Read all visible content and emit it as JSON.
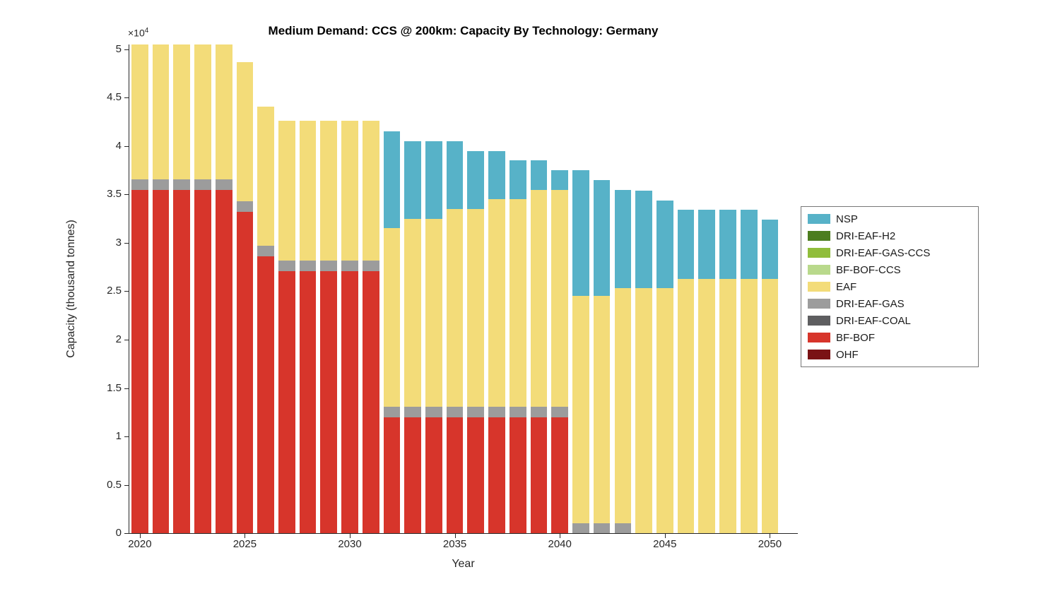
{
  "title": "Medium Demand: CCS @ 200km: Capacity By Technology: Germany",
  "axes": {
    "xlabel": "Year",
    "ylabel": "Capacity (thousand tonnes)",
    "y_mult_base": "×10",
    "y_mult_exp": "4",
    "x_ticks": [
      2020,
      2025,
      2030,
      2035,
      2040,
      2045,
      2050
    ],
    "y_ticks": [
      {
        "value": 0,
        "label": "0"
      },
      {
        "value": 5000,
        "label": "0.5"
      },
      {
        "value": 10000,
        "label": "1"
      },
      {
        "value": 15000,
        "label": "1.5"
      },
      {
        "value": 20000,
        "label": "2"
      },
      {
        "value": 25000,
        "label": "2.5"
      },
      {
        "value": 30000,
        "label": "3"
      },
      {
        "value": 35000,
        "label": "3.5"
      },
      {
        "value": 40000,
        "label": "4"
      },
      {
        "value": 45000,
        "label": "4.5"
      },
      {
        "value": 50000,
        "label": "5"
      }
    ]
  },
  "chart_data": {
    "type": "bar",
    "stacked": true,
    "title": "Medium Demand: CCS @ 200km: Capacity By Technology: Germany",
    "xlabel": "Year",
    "ylabel": "Capacity (thousand tonnes)",
    "units": "thousand tonnes",
    "xlim": [
      2019.5,
      2051.3
    ],
    "ylim": [
      0,
      50500
    ],
    "bar_width_years": 0.8,
    "legend_position": "right-outside",
    "grid": false,
    "x": [
      2020,
      2021,
      2022,
      2023,
      2024,
      2025,
      2026,
      2027,
      2028,
      2029,
      2030,
      2031,
      2032,
      2033,
      2034,
      2035,
      2036,
      2037,
      2038,
      2039,
      2040,
      2041,
      2042,
      2043,
      2044,
      2045,
      2046,
      2047,
      2048,
      2049,
      2050
    ],
    "series": [
      {
        "name": "OHF",
        "color": "#7a1215",
        "values": [
          0,
          0,
          0,
          0,
          0,
          0,
          0,
          0,
          0,
          0,
          0,
          0,
          0,
          0,
          0,
          0,
          0,
          0,
          0,
          0,
          0,
          0,
          0,
          0,
          0,
          0,
          0,
          0,
          0,
          0,
          0
        ]
      },
      {
        "name": "BF-BOF",
        "color": "#d7352b",
        "values": [
          35500,
          35500,
          35500,
          35500,
          35500,
          33200,
          28600,
          27100,
          27100,
          27100,
          27100,
          27100,
          12000,
          12000,
          12000,
          12000,
          12000,
          12000,
          12000,
          12000,
          12000,
          0,
          0,
          0,
          0,
          0,
          0,
          0,
          0,
          0,
          0
        ]
      },
      {
        "name": "DRI-EAF-COAL",
        "color": "#5e5e60",
        "values": [
          0,
          0,
          0,
          0,
          0,
          0,
          0,
          0,
          0,
          0,
          0,
          0,
          0,
          0,
          0,
          0,
          0,
          0,
          0,
          0,
          0,
          0,
          0,
          0,
          0,
          0,
          0,
          0,
          0,
          0,
          0
        ]
      },
      {
        "name": "DRI-EAF-GAS",
        "color": "#9c9c9c",
        "values": [
          1100,
          1100,
          1100,
          1100,
          1100,
          1100,
          1100,
          1100,
          1100,
          1100,
          1100,
          1100,
          1100,
          1100,
          1100,
          1100,
          1100,
          1100,
          1100,
          1100,
          1100,
          1000,
          1000,
          1000,
          0,
          0,
          0,
          0,
          0,
          0,
          0
        ]
      },
      {
        "name": "EAF",
        "color": "#f3dc79",
        "values": [
          14400,
          14400,
          14400,
          14400,
          14400,
          14400,
          14400,
          14400,
          14400,
          14400,
          14400,
          14400,
          18400,
          19400,
          19400,
          20400,
          20400,
          21400,
          21400,
          22400,
          22400,
          23500,
          23500,
          24300,
          25300,
          25300,
          26300,
          26300,
          26300,
          26300,
          26300
        ]
      },
      {
        "name": "BF-BOF-CCS",
        "color": "#b9d98c",
        "values": [
          0,
          0,
          0,
          0,
          0,
          0,
          0,
          0,
          0,
          0,
          0,
          0,
          0,
          0,
          0,
          0,
          0,
          0,
          0,
          0,
          0,
          0,
          0,
          0,
          0,
          0,
          0,
          0,
          0,
          0,
          0
        ]
      },
      {
        "name": "DRI-EAF-GAS-CCS",
        "color": "#90bd3b",
        "values": [
          0,
          0,
          0,
          0,
          0,
          0,
          0,
          0,
          0,
          0,
          0,
          0,
          0,
          0,
          0,
          0,
          0,
          0,
          0,
          0,
          0,
          0,
          0,
          0,
          0,
          0,
          0,
          0,
          0,
          0,
          0
        ]
      },
      {
        "name": "DRI-EAF-H2",
        "color": "#4c7d1f",
        "values": [
          0,
          0,
          0,
          0,
          0,
          0,
          0,
          0,
          0,
          0,
          0,
          0,
          0,
          0,
          0,
          0,
          0,
          0,
          0,
          0,
          0,
          0,
          0,
          0,
          0,
          0,
          0,
          0,
          0,
          0,
          0
        ]
      },
      {
        "name": "NSP",
        "color": "#57b2c8",
        "values": [
          0,
          0,
          0,
          0,
          0,
          0,
          0,
          0,
          0,
          0,
          0,
          0,
          10000,
          8000,
          8000,
          7000,
          6000,
          5000,
          4000,
          3000,
          2000,
          13000,
          12000,
          10200,
          10100,
          9100,
          7100,
          7100,
          7100,
          7100,
          6100
        ]
      }
    ],
    "legend_order_top_to_bottom": [
      "NSP",
      "DRI-EAF-H2",
      "DRI-EAF-GAS-CCS",
      "BF-BOF-CCS",
      "EAF",
      "DRI-EAF-GAS",
      "DRI-EAF-COAL",
      "BF-BOF",
      "OHF"
    ]
  }
}
